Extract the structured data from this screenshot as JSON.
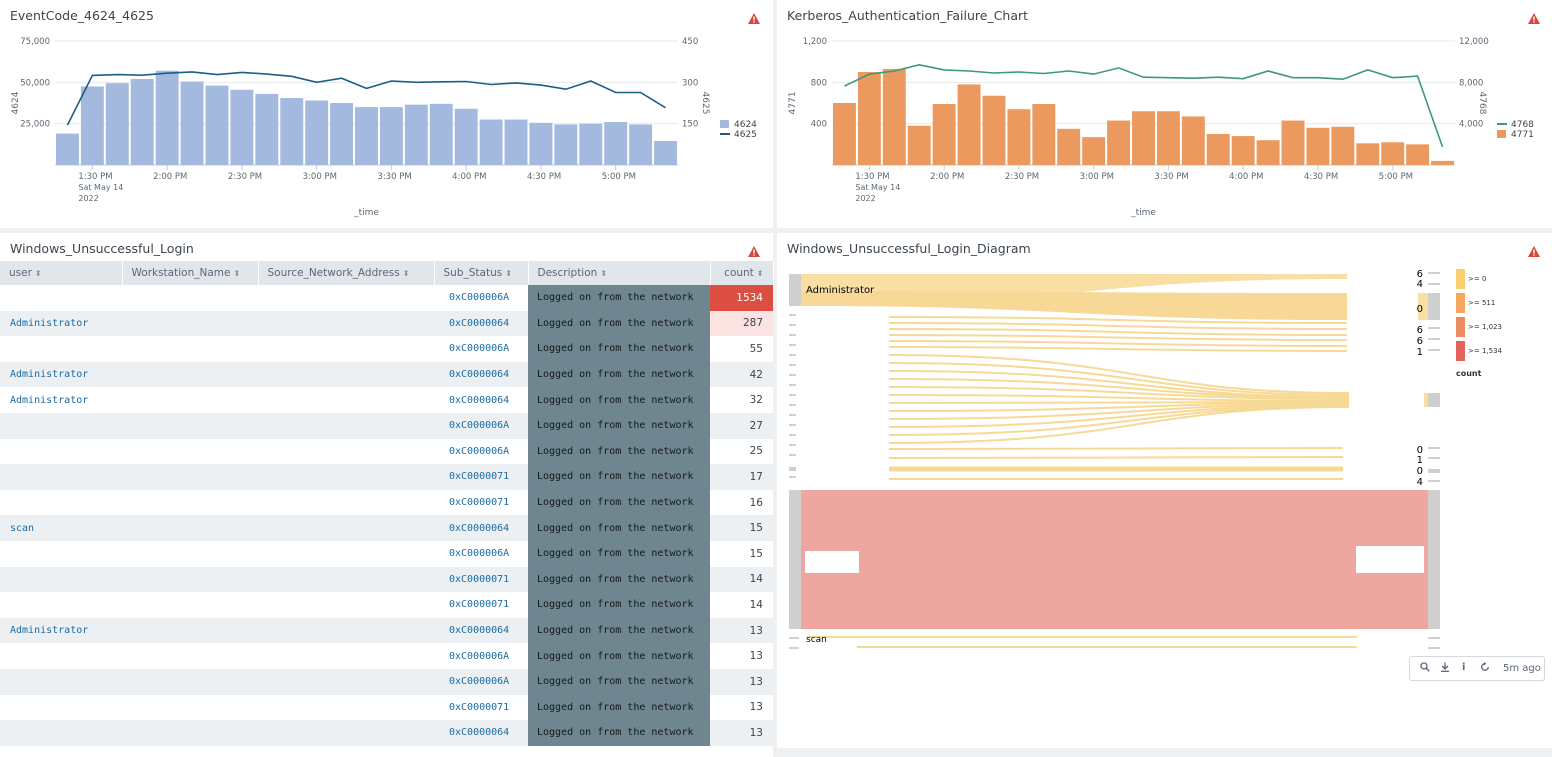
{
  "panels": {
    "eventcode": {
      "title": "EventCode_4624_4625",
      "y_left_label": "4624",
      "y_right_label": "4625",
      "x_label": "_time",
      "legend": [
        "4624",
        "4625"
      ]
    },
    "kerberos": {
      "title": "Kerberos_Authentication_Failure_Chart",
      "y_left_label": "4771",
      "y_right_label": "4768",
      "x_label": "_time",
      "legend": [
        "4768",
        "4771"
      ]
    },
    "login_table": {
      "title": "Windows_Unsuccessful_Login"
    },
    "login_diagram": {
      "title": "Windows_Unsuccessful_Login_Diagram"
    }
  },
  "chart_data": [
    {
      "type": "bar",
      "title": "EventCode_4624_4625",
      "xlabel": "_time",
      "ylabel": "4624",
      "y2label": "4625",
      "ylim": [
        0,
        75000
      ],
      "y2lim": [
        0,
        450
      ],
      "yticks": [
        "25,000",
        "50,000",
        "75,000"
      ],
      "y2ticks": [
        "150",
        "300",
        "450"
      ],
      "xticks": [
        "1:30 PM",
        "2:00 PM",
        "2:30 PM",
        "3:00 PM",
        "3:30 PM",
        "4:00 PM",
        "4:30 PM",
        "5:00 PM"
      ],
      "xtick_sub": [
        "Sat May 14",
        "2022"
      ],
      "series": [
        {
          "name": "4624",
          "kind": "bar",
          "color": "#a3b9de",
          "values": [
            19000,
            47500,
            49500,
            52000,
            57000,
            50500,
            48000,
            45500,
            43000,
            40500,
            39000,
            37500,
            35000,
            35000,
            36500,
            37000,
            34000,
            27500,
            27500,
            25500,
            24500,
            25000,
            26000,
            24500,
            14500
          ]
        },
        {
          "name": "4625",
          "kind": "line",
          "color": "#1c5f86",
          "values": [
            145,
            325,
            328,
            326,
            333,
            338,
            328,
            336,
            330,
            322,
            300,
            315,
            278,
            305,
            300,
            302,
            303,
            292,
            298,
            290,
            275,
            305,
            263,
            263,
            208
          ]
        }
      ]
    },
    {
      "type": "bar",
      "title": "Kerberos_Authentication_Failure_Chart",
      "xlabel": "_time",
      "ylabel": "4771",
      "y2label": "4768",
      "ylim": [
        0,
        1200
      ],
      "y2lim": [
        0,
        12000
      ],
      "yticks": [
        "400",
        "800",
        "1,200"
      ],
      "y2ticks": [
        "4,000",
        "8,000",
        "12,000"
      ],
      "xticks": [
        "1:30 PM",
        "2:00 PM",
        "2:30 PM",
        "3:00 PM",
        "3:30 PM",
        "4:00 PM",
        "4:30 PM",
        "5:00 PM"
      ],
      "xtick_sub": [
        "Sat May 14",
        "2022"
      ],
      "series": [
        {
          "name": "4771",
          "kind": "bar",
          "color": "#ec9960",
          "values": [
            600,
            900,
            930,
            380,
            590,
            780,
            670,
            540,
            590,
            350,
            270,
            430,
            520,
            520,
            470,
            300,
            280,
            240,
            430,
            360,
            370,
            210,
            220,
            200,
            40
          ]
        },
        {
          "name": "4768",
          "kind": "line",
          "color": "#3a9a7b",
          "values": [
            7650,
            8800,
            9100,
            9700,
            9200,
            9100,
            8900,
            9000,
            8850,
            9100,
            8800,
            9400,
            8500,
            8450,
            8400,
            8500,
            8350,
            9100,
            8450,
            8450,
            8300,
            9200,
            8450,
            8600,
            1750
          ]
        }
      ]
    }
  ],
  "table": {
    "columns": [
      "user",
      "Workstation_Name",
      "Source_Network_Address",
      "Sub_Status",
      "Description",
      "count"
    ],
    "rows": [
      {
        "user": "",
        "workstation": "",
        "source": "",
        "sub_status": "0xC000006A",
        "description": "Logged on from the network",
        "count": "1534"
      },
      {
        "user": "Administrator",
        "workstation": "",
        "source": "",
        "sub_status": "0xC0000064",
        "description": "Logged on from the network",
        "count": "287"
      },
      {
        "user": "",
        "workstation": "",
        "source": "",
        "sub_status": "0xC000006A",
        "description": "Logged on from the network",
        "count": "55"
      },
      {
        "user": "Administrator",
        "workstation": "",
        "source": "",
        "sub_status": "0xC0000064",
        "description": "Logged on from the network",
        "count": "42"
      },
      {
        "user": "Administrator",
        "workstation": "",
        "source": "",
        "sub_status": "0xC0000064",
        "description": "Logged on from the network",
        "count": "32"
      },
      {
        "user": "",
        "workstation": "",
        "source": "",
        "sub_status": "0xC000006A",
        "description": "Logged on from the network",
        "count": "27"
      },
      {
        "user": "",
        "workstation": "",
        "source": "",
        "sub_status": "0xC000006A",
        "description": "Logged on from the network",
        "count": "25"
      },
      {
        "user": "",
        "workstation": "",
        "source": "",
        "sub_status": "0xC0000071",
        "description": "Logged on from the network",
        "count": "17"
      },
      {
        "user": "",
        "workstation": "",
        "source": "",
        "sub_status": "0xC0000071",
        "description": "Logged on from the network",
        "count": "16"
      },
      {
        "user": "scan",
        "workstation": "",
        "source": "",
        "sub_status": "0xC0000064",
        "description": "Logged on from the network",
        "count": "15"
      },
      {
        "user": "",
        "workstation": "",
        "source": "",
        "sub_status": "0xC000006A",
        "description": "Logged on from the network",
        "count": "15"
      },
      {
        "user": "",
        "workstation": "",
        "source": "",
        "sub_status": "0xC0000071",
        "description": "Logged on from the network",
        "count": "14"
      },
      {
        "user": "",
        "workstation": "",
        "source": "",
        "sub_status": "0xC0000071",
        "description": "Logged on from the network",
        "count": "14"
      },
      {
        "user": "Administrator",
        "workstation": "",
        "source": "",
        "sub_status": "0xC0000064",
        "description": "Logged on from the network",
        "count": "13"
      },
      {
        "user": "",
        "workstation": "",
        "source": "",
        "sub_status": "0xC000006A",
        "description": "Logged on from the network",
        "count": "13"
      },
      {
        "user": "",
        "workstation": "",
        "source": "",
        "sub_status": "0xC000006A",
        "description": "Logged on from the network",
        "count": "13"
      },
      {
        "user": "",
        "workstation": "",
        "source": "",
        "sub_status": "0xC0000071",
        "description": "Logged on from the network",
        "count": "13"
      },
      {
        "user": "",
        "workstation": "",
        "source": "",
        "sub_status": "0xC0000064",
        "description": "Logged on from the network",
        "count": "13"
      }
    ]
  },
  "sankey": {
    "source_labels": [
      "Administrator",
      "scan"
    ],
    "right_values": [
      "6",
      "4",
      "0",
      "6",
      "6",
      "1",
      "0",
      "1",
      "0",
      "4"
    ],
    "legend_title": "count",
    "legend_items": [
      {
        "label": ">= 0",
        "color": "#f7cf6e"
      },
      {
        "label": ">= 511",
        "color": "#f3a85e"
      },
      {
        "label": ">= 1,023",
        "color": "#ec8a62"
      },
      {
        "label": ">= 1,534",
        "color": "#e2635b"
      }
    ]
  },
  "toolbar": {
    "refreshed": "5m ago"
  },
  "colors": {
    "warning": "#d9463a",
    "description_bg": "#6f858f",
    "count_high": "#dc4e41",
    "count_mid": "#fbe3e1"
  }
}
